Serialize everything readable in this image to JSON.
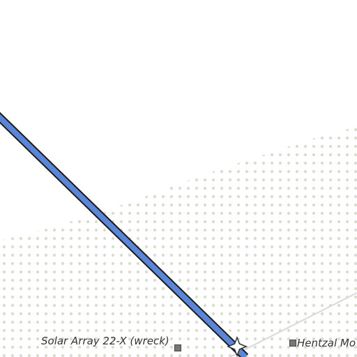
{
  "map": {
    "colors": {
      "background": "#ffffff",
      "stipple_dot": "#dcdcd2",
      "road_casing": "#1a1a1a",
      "road_fill": "#5b85d6",
      "faint_line": "#d9d9d9",
      "marker": "#777777"
    },
    "pois": [
      {
        "label": "Solar Array 22-X (wreck)",
        "icon": "square-marker-icon"
      },
      {
        "label": "Hentzal Mo",
        "icon": "square-marker-icon"
      }
    ],
    "junction_icon": "star-marker-icon"
  }
}
